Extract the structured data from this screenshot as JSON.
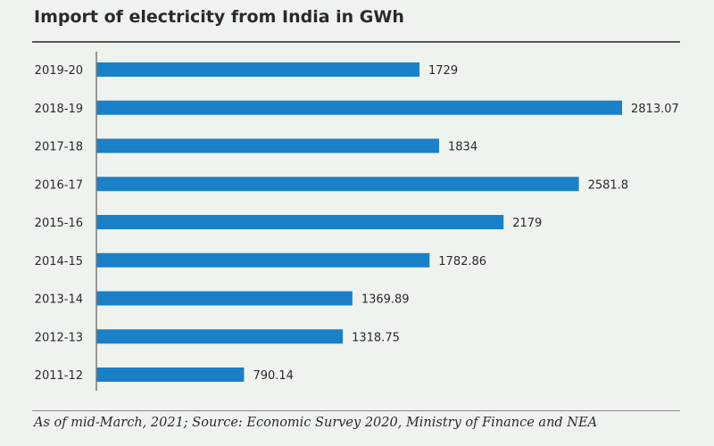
{
  "chart_data": {
    "type": "bar",
    "orientation": "horizontal",
    "title": "Import of electricity from India in GWh",
    "categories": [
      "2019-20",
      "2018-19",
      "2017-18",
      "2016-17",
      "2015-16",
      "2014-15",
      "2013-14",
      "2012-13",
      "2011-12"
    ],
    "values": [
      1729,
      2813.07,
      1834,
      2581.8,
      2179,
      1782.86,
      1369.89,
      1318.75,
      790.14
    ],
    "value_labels": [
      "1729",
      "2813.07",
      "1834",
      "2581.8",
      "2179",
      "1782.86",
      "1369.89",
      "1318.75",
      "790.14"
    ],
    "xlim": [
      0,
      2813.07
    ],
    "grid": false,
    "bar_color": "#1a80c8",
    "note": "As of mid-March, 2021; Source: Economic Survey 2020, Ministry of Finance and NEA"
  }
}
